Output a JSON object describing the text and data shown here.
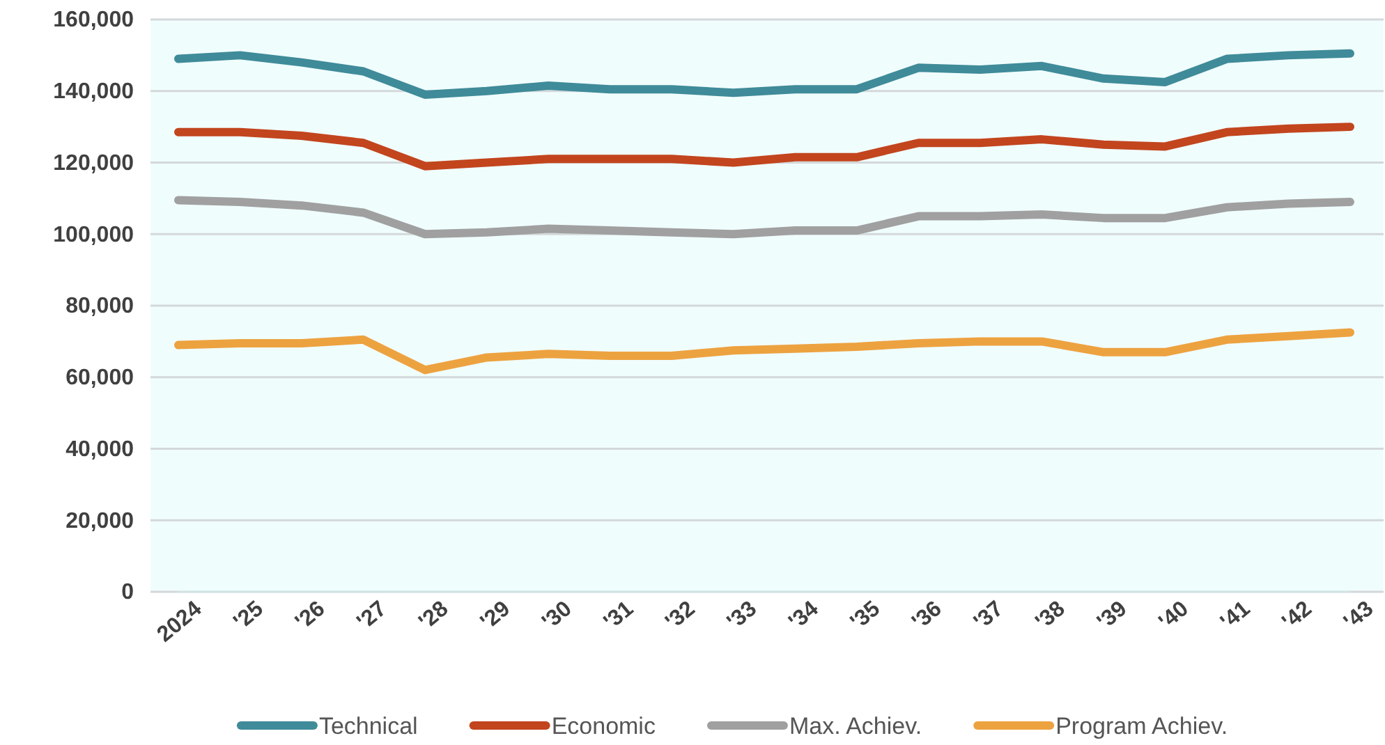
{
  "chart_data": {
    "type": "line",
    "categories": [
      "2024",
      "'25",
      "'26",
      "'27",
      "'28",
      "'29",
      "'30",
      "'31",
      "'32",
      "'33",
      "'34",
      "'35",
      "'36",
      "'37",
      "'38",
      "'39",
      "'40",
      "'41",
      "'42",
      "'43"
    ],
    "series": [
      {
        "name": "Technical",
        "color": "#3f8b99",
        "values": [
          149000,
          150000,
          148000,
          145500,
          139000,
          140000,
          141500,
          140500,
          140500,
          139500,
          140500,
          140500,
          146500,
          146000,
          147000,
          143500,
          142500,
          149000,
          150000,
          150500
        ]
      },
      {
        "name": "Economic",
        "color": "#c2451e",
        "values": [
          128500,
          128500,
          127500,
          125500,
          119000,
          120000,
          121000,
          121000,
          121000,
          120000,
          121500,
          121500,
          125500,
          125500,
          126500,
          125000,
          124500,
          128500,
          129500,
          130000
        ]
      },
      {
        "name": "Max. Achiev.",
        "color": "#a0a0a0",
        "values": [
          109500,
          109000,
          108000,
          106000,
          100000,
          100500,
          101500,
          101000,
          100500,
          100000,
          101000,
          101000,
          105000,
          105000,
          105500,
          104500,
          104500,
          107500,
          108500,
          109000
        ]
      },
      {
        "name": "Program Achiev.",
        "color": "#eda240",
        "values": [
          69000,
          69500,
          69500,
          70500,
          62000,
          65500,
          66500,
          66000,
          66000,
          67500,
          68000,
          68500,
          69500,
          70000,
          70000,
          67000,
          67000,
          70500,
          71500,
          72500
        ]
      }
    ],
    "ylim": [
      0,
      160000
    ],
    "yticks": [
      {
        "value": 0,
        "label": "0"
      },
      {
        "value": 20000,
        "label": "20,000"
      },
      {
        "value": 40000,
        "label": "40,000"
      },
      {
        "value": 60000,
        "label": "60,000"
      },
      {
        "value": 80000,
        "label": "80,000"
      },
      {
        "value": 100000,
        "label": "100,000"
      },
      {
        "value": 120000,
        "label": "120,000"
      },
      {
        "value": 140000,
        "label": "140,000"
      },
      {
        "value": 160000,
        "label": "160,000"
      }
    ],
    "grid": "y",
    "legend": "bottom",
    "marker": "none",
    "line_style": "solid"
  }
}
